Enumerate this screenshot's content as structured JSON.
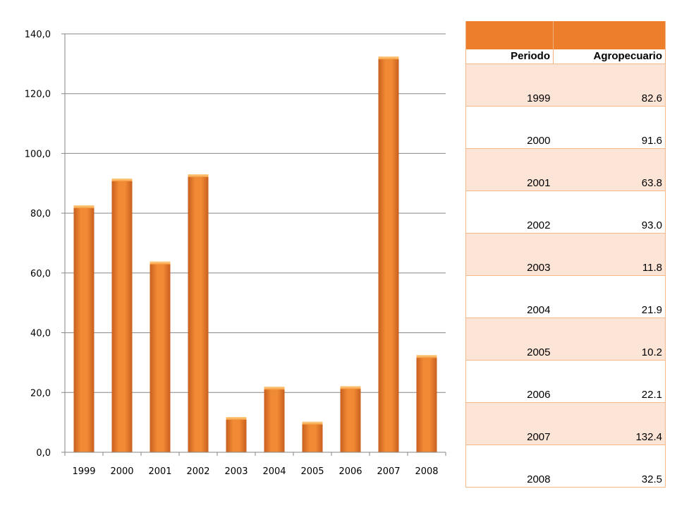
{
  "chart_data": {
    "type": "bar",
    "categories": [
      "1999",
      "2000",
      "2001",
      "2002",
      "2003",
      "2004",
      "2005",
      "2006",
      "2007",
      "2008"
    ],
    "values": [
      82.6,
      91.6,
      63.8,
      93.0,
      11.8,
      21.9,
      10.2,
      22.1,
      132.4,
      32.5
    ],
    "ylim": [
      0,
      140
    ],
    "yticks": [
      "0,0",
      "20,0",
      "40,0",
      "60,0",
      "80,0",
      "100,0",
      "120,0",
      "140,0"
    ],
    "grid": true,
    "bar_color": "#e8762b",
    "bar_highlight": "#fbb85d",
    "bar_shade": "#c8601f"
  },
  "table": {
    "headers": [
      "Periodo",
      "Agropecuario"
    ],
    "rows": [
      [
        "1999",
        "82.6"
      ],
      [
        "2000",
        "91.6"
      ],
      [
        "2001",
        "63.8"
      ],
      [
        "2002",
        "93.0"
      ],
      [
        "2003",
        "11.8"
      ],
      [
        "2004",
        "21.9"
      ],
      [
        "2005",
        "10.2"
      ],
      [
        "2006",
        "22.1"
      ],
      [
        "2007",
        "132.4"
      ],
      [
        "2008",
        "32.5"
      ]
    ],
    "header_color": "#ec7e2c",
    "stripe_color": "#fce4d6"
  }
}
